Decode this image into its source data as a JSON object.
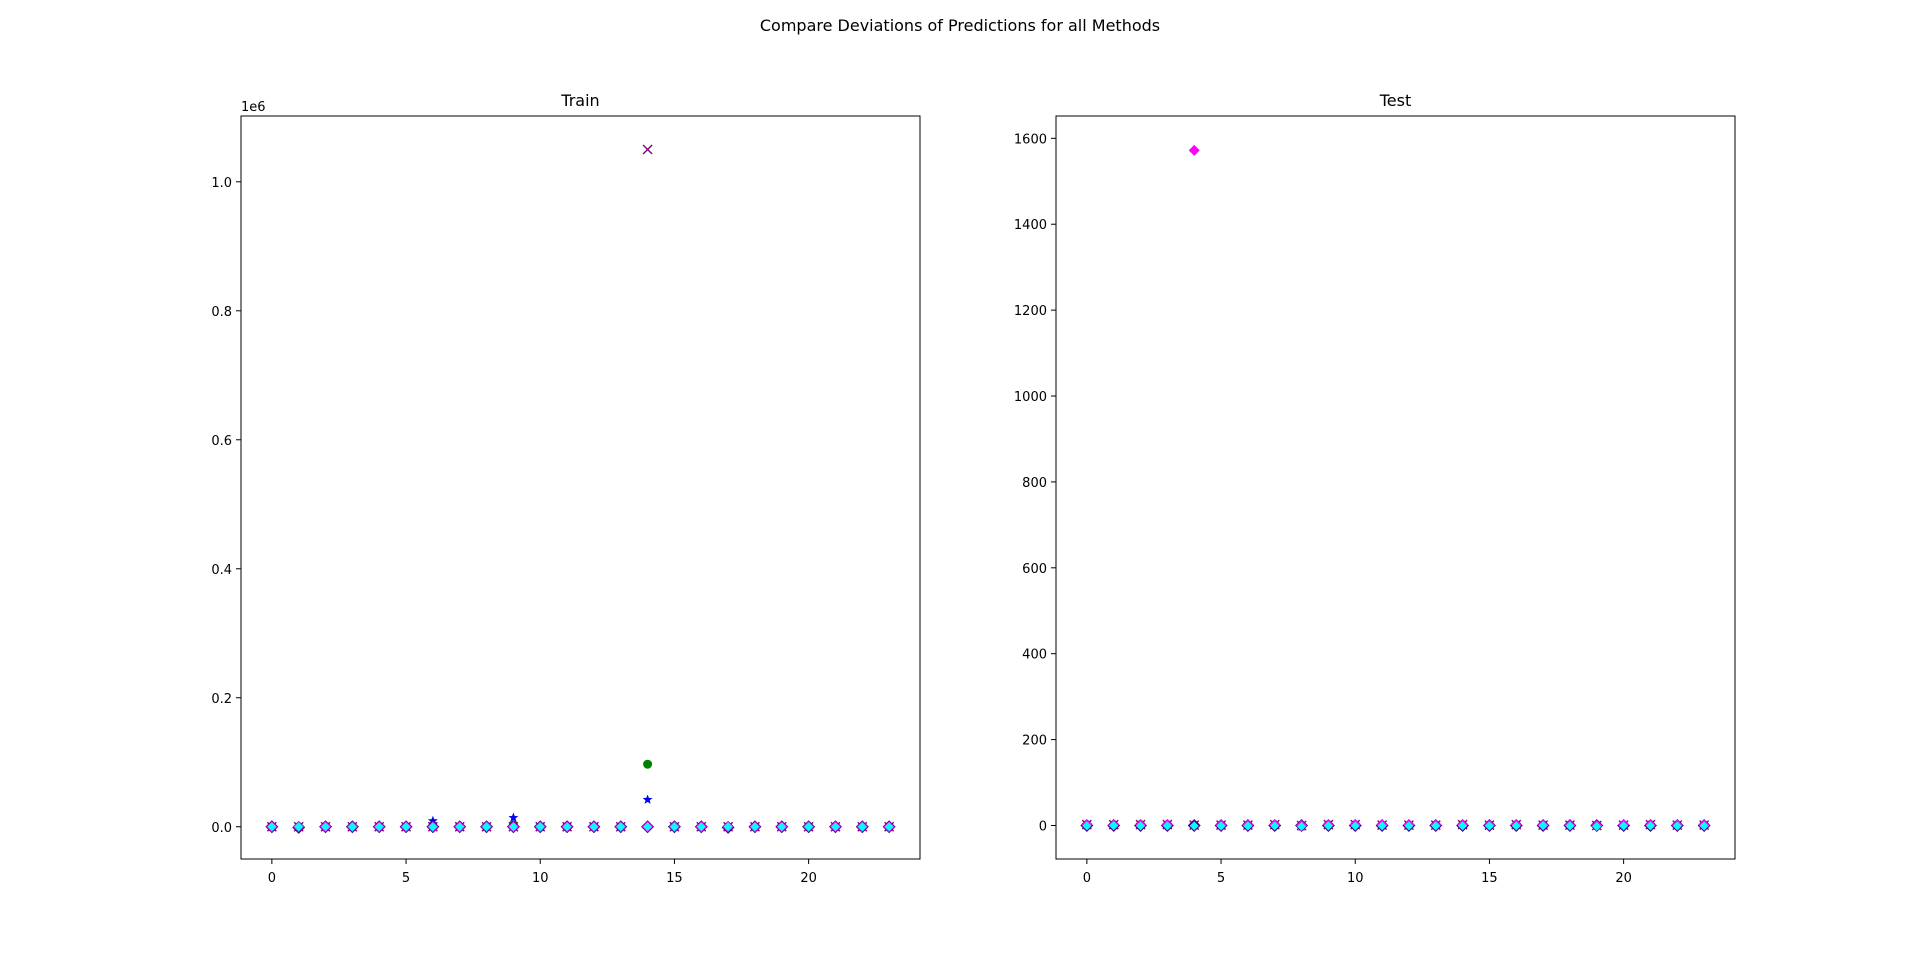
{
  "figure": {
    "suptitle": "Compare Deviations of Predictions for all Methods"
  },
  "colors": {
    "green": "#008000",
    "blue": "#0000ff",
    "purple": "#800080",
    "indigo": "#4b0082",
    "magenta": "#ff00ff",
    "cyan": "#00ffff"
  },
  "chart_data": [
    {
      "type": "scatter",
      "title": "Train",
      "xlabel": "",
      "ylabel": "",
      "y_offset_label": "1e6",
      "xlim": [
        -1.15,
        24.15
      ],
      "ylim": [
        -50000,
        1102000
      ],
      "xticks": [
        0,
        5,
        10,
        15,
        20
      ],
      "xtick_labels": [
        "0",
        "5",
        "10",
        "15",
        "20"
      ],
      "yticks": [
        0,
        200000,
        400000,
        600000,
        800000,
        1000000
      ],
      "ytick_labels": [
        "0.0",
        "0.2",
        "0.4",
        "0.6",
        "0.8",
        "1.0"
      ],
      "grid": false,
      "x": [
        0,
        1,
        2,
        3,
        4,
        5,
        6,
        7,
        8,
        9,
        10,
        11,
        12,
        13,
        14,
        15,
        16,
        17,
        18,
        19,
        20,
        21,
        22,
        23
      ],
      "series": [
        {
          "marker": "circle",
          "color": "green",
          "values": [
            0,
            0,
            0,
            0,
            0,
            0,
            2000,
            0,
            0,
            3000,
            0,
            0,
            0,
            0,
            97000,
            0,
            0,
            0,
            0,
            0,
            0,
            0,
            0,
            0
          ]
        },
        {
          "marker": "star",
          "color": "blue",
          "values": [
            0,
            0,
            0,
            0,
            0,
            0,
            9000,
            0,
            0,
            14000,
            0,
            0,
            0,
            0,
            42000,
            0,
            0,
            0,
            0,
            0,
            0,
            0,
            0,
            0
          ]
        },
        {
          "marker": "x",
          "color": "purple",
          "values": [
            0,
            0,
            0,
            0,
            0,
            0,
            0,
            0,
            0,
            0,
            0,
            0,
            0,
            0,
            1050000,
            0,
            0,
            0,
            0,
            0,
            0,
            0,
            0,
            0
          ]
        },
        {
          "marker": "diamond-large",
          "color": "indigo",
          "values": [
            0,
            -1000,
            0,
            0,
            0,
            0,
            0,
            0,
            0,
            0,
            0,
            0,
            0,
            0,
            0,
            0,
            0,
            -1000,
            0,
            0,
            0,
            0,
            0,
            0
          ]
        },
        {
          "marker": "diamond",
          "color": "magenta",
          "values": [
            0,
            0,
            0,
            0,
            0,
            0,
            0,
            0,
            0,
            0,
            0,
            0,
            0,
            0,
            0,
            0,
            0,
            0,
            0,
            0,
            0,
            0,
            0,
            0
          ]
        },
        {
          "marker": "diamond-small",
          "color": "cyan",
          "values": [
            0,
            0,
            0,
            0,
            0,
            0,
            0,
            0,
            0,
            0,
            0,
            0,
            0,
            0,
            0,
            0,
            0,
            0,
            0,
            0,
            0,
            0,
            0,
            0
          ]
        }
      ]
    },
    {
      "type": "scatter",
      "title": "Test",
      "xlabel": "",
      "ylabel": "",
      "y_offset_label": "",
      "xlim": [
        -1.15,
        24.15
      ],
      "ylim": [
        -78,
        1652
      ],
      "xticks": [
        0,
        5,
        10,
        15,
        20
      ],
      "xtick_labels": [
        "0",
        "5",
        "10",
        "15",
        "20"
      ],
      "yticks": [
        0,
        200,
        400,
        600,
        800,
        1000,
        1200,
        1400,
        1600
      ],
      "ytick_labels": [
        "0",
        "200",
        "400",
        "600",
        "800",
        "1000",
        "1200",
        "1400",
        "1600"
      ],
      "grid": false,
      "x": [
        0,
        1,
        2,
        3,
        4,
        5,
        6,
        7,
        8,
        9,
        10,
        11,
        12,
        13,
        14,
        15,
        16,
        17,
        18,
        19,
        20,
        21,
        22,
        23
      ],
      "series": [
        {
          "marker": "circle",
          "color": "green",
          "values": [
            2,
            1,
            2,
            2,
            1,
            1,
            1,
            2,
            0,
            2,
            2,
            1,
            1,
            1,
            2,
            1,
            2,
            1,
            1,
            0,
            1,
            2,
            1,
            1
          ]
        },
        {
          "marker": "star",
          "color": "blue",
          "values": [
            2,
            1,
            2,
            2,
            1,
            1,
            1,
            2,
            -3,
            2,
            2,
            2,
            1,
            1,
            2,
            1,
            2,
            1,
            1,
            0,
            1,
            2,
            1,
            1
          ]
        },
        {
          "marker": "x",
          "color": "purple",
          "values": [
            2,
            2,
            2,
            2,
            1,
            1,
            1,
            2,
            0,
            2,
            2,
            1,
            1,
            1,
            2,
            1,
            2,
            1,
            1,
            0,
            1,
            2,
            1,
            1
          ]
        },
        {
          "marker": "diamond-large",
          "color": "indigo",
          "values": [
            0,
            0,
            0,
            0,
            0,
            0,
            0,
            0,
            0,
            0,
            0,
            0,
            0,
            0,
            0,
            0,
            0,
            0,
            0,
            0,
            0,
            0,
            0,
            0
          ]
        },
        {
          "marker": "diamond",
          "color": "magenta",
          "values": [
            2,
            1,
            2,
            2,
            1572,
            1,
            1,
            2,
            0,
            2,
            2,
            2,
            2,
            1,
            2,
            1,
            2,
            1,
            1,
            0,
            2,
            2,
            1,
            1
          ]
        },
        {
          "marker": "diamond-small",
          "color": "cyan",
          "values": [
            -1,
            0,
            -1,
            -1,
            -1,
            -1,
            -1,
            -1,
            -2,
            -1,
            -1,
            -1,
            -1,
            -1,
            -1,
            -1,
            -1,
            0,
            -1,
            -2,
            -1,
            -1,
            -1,
            -1
          ]
        }
      ]
    }
  ]
}
